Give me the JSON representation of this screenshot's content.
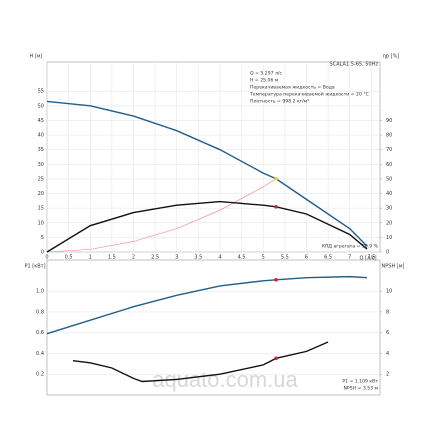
{
  "chart_data": [
    {
      "type": "line",
      "title": "SCALA1 5-65, 50Hz",
      "xlabel": "Q [л/с]",
      "ylabel": "H [м]",
      "y2label": "ηp [%]",
      "xlim": [
        0,
        7.7
      ],
      "xticks": [
        0,
        0.5,
        1,
        1.5,
        2,
        2.5,
        3,
        3.5,
        4,
        4.5,
        5,
        5.5,
        6,
        6.5,
        7,
        7.5
      ],
      "ylim": [
        0,
        65
      ],
      "yticks": [
        0,
        5,
        10,
        15,
        20,
        25,
        30,
        35,
        40,
        45,
        50,
        55
      ],
      "y2lim": [
        0,
        130
      ],
      "y2ticks": [
        0,
        10,
        20,
        30,
        40,
        50,
        60,
        70,
        80,
        90
      ],
      "grid": true,
      "series": [
        {
          "type": "line",
          "color": "#1f5f8b",
          "x": [
            0,
            1,
            2,
            3,
            4,
            5,
            5.297,
            6,
            7,
            7.4
          ],
          "values": [
            51.5,
            50,
            46.5,
            41.5,
            35,
            27,
            25.06,
            18,
            8,
            2
          ]
        },
        {
          "type": "line",
          "color": "#f08080",
          "x": [
            0,
            1,
            2,
            3,
            4,
            5,
            5.297
          ],
          "values": [
            0,
            0.9,
            3.6,
            8,
            14.3,
            22.3,
            25.06
          ]
        },
        {
          "type": "line",
          "axis": "y2",
          "color": "#111111",
          "x": [
            0,
            1,
            2,
            3,
            4,
            5,
            5.297,
            6,
            7,
            7.4
          ],
          "values": [
            0,
            18,
            27,
            32,
            34.5,
            32,
            30.9,
            26,
            12,
            2
          ]
        },
        {
          "type": "scatter",
          "color": "#f2d21b",
          "x": [
            5.297
          ],
          "values": [
            25.06
          ]
        },
        {
          "type": "scatter",
          "axis": "y2",
          "color": "#d62728",
          "x": [
            5.297
          ],
          "values": [
            30.9
          ]
        }
      ],
      "annotations": [
        "Q = 5.297 л/с",
        "H = 25.06 м",
        "Перекачиваемая жидкость = Вода",
        "Температура перекачиваемой жидкости = 20 °C",
        "Плотность = 998.2 кг/м³",
        "КПД агрегата = 30.9 %"
      ]
    },
    {
      "type": "line",
      "ylabel": "P1 [кВт]",
      "y2label": "NPSH [м]",
      "xlim": [
        0,
        7.7
      ],
      "ylim": [
        0,
        1.3
      ],
      "yticks": [
        0.2,
        0.4,
        0.6,
        0.8,
        {
          "value": 1,
          "label": "1.0"
        }
      ],
      "y2lim": [
        0,
        13
      ],
      "y2ticks": [
        2,
        4,
        6,
        8,
        10
      ],
      "grid": true,
      "series": [
        {
          "type": "line",
          "color": "#1f5f8b",
          "x": [
            0,
            1,
            2,
            3,
            4,
            5,
            5.297,
            6,
            7,
            7.4
          ],
          "values": [
            0.59,
            0.72,
            0.85,
            0.96,
            1.05,
            1.1,
            1.109,
            1.13,
            1.14,
            1.13
          ]
        },
        {
          "type": "line",
          "axis": "y2",
          "color": "#111111",
          "x": [
            0.6,
            1,
            1.5,
            2,
            2.2,
            3,
            4,
            5,
            5.297,
            6,
            6.5
          ],
          "values": [
            3.3,
            3.1,
            2.6,
            1.6,
            1.3,
            1.5,
            2,
            2.9,
            3.53,
            4.2,
            5.1
          ]
        },
        {
          "type": "scatter",
          "color": "#d62728",
          "x": [
            5.297
          ],
          "values": [
            1.109
          ]
        },
        {
          "type": "scatter",
          "axis": "y2",
          "color": "#d62728",
          "x": [
            5.297
          ],
          "values": [
            3.53
          ]
        }
      ],
      "annotations": [
        "P1 = 1.109 кВт",
        "NPSH = 3.53 м"
      ]
    }
  ],
  "watermark": "aquato.com.ua"
}
